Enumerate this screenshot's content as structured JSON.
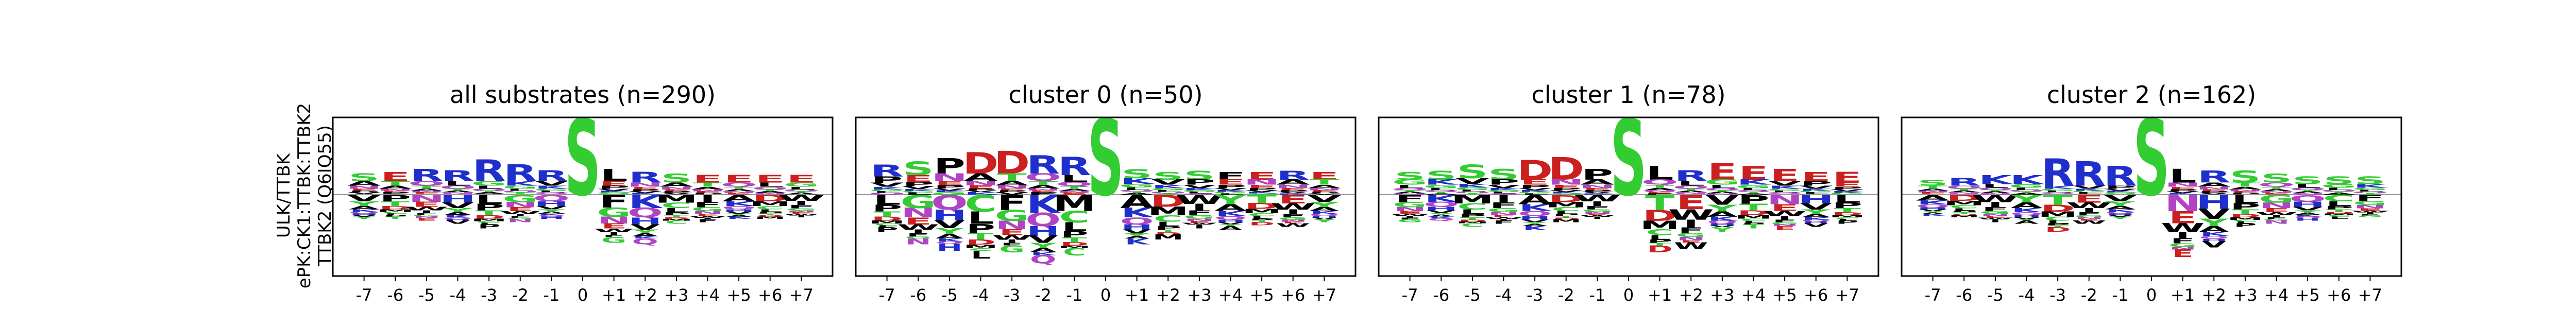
{
  "figure": {
    "row_label_lines": [
      "ULK/TTBK",
      "ePK:CK1:TTBK:TTBK2",
      "TTBK2 (Q6IQ55)"
    ]
  },
  "colors": {
    "S": "#33cc33",
    "T": "#33cc33",
    "G": "#33cc33",
    "Y": "#33cc33",
    "C": "#33cc33",
    "R": "#1f2fcc",
    "K": "#1f2fcc",
    "H": "#1f2fcc",
    "D": "#cc1f1f",
    "E": "#cc1f1f",
    "N": "#b044c4",
    "Q": "#b044c4",
    "A": "#000000",
    "V": "#000000",
    "L": "#000000",
    "I": "#000000",
    "P": "#000000",
    "F": "#000000",
    "W": "#000000",
    "M": "#000000",
    "baseline": "#999999"
  },
  "chart_data": [
    {
      "type": "sequence-logo",
      "title": "all substrates (n=290)",
      "positions": [
        "-7",
        "-6",
        "-5",
        "-4",
        "-3",
        "-2",
        "-1",
        "0",
        "+1",
        "+2",
        "+3",
        "+4",
        "+5",
        "+6",
        "+7"
      ],
      "central_residue": "S",
      "central_height": 1.0,
      "top_letters": [
        "S",
        "E",
        "R",
        "R",
        "R",
        "R",
        "R",
        "S",
        "L",
        "R",
        "S",
        "E",
        "E",
        "E",
        "E"
      ],
      "top_height": [
        0.1,
        0.12,
        0.16,
        0.14,
        0.28,
        0.22,
        0.14,
        1.0,
        0.16,
        0.14,
        0.12,
        0.1,
        0.1,
        0.1,
        0.1
      ],
      "stack_above": [
        0.28,
        0.3,
        0.34,
        0.32,
        0.46,
        0.4,
        0.32,
        1.0,
        0.34,
        0.3,
        0.28,
        0.26,
        0.26,
        0.26,
        0.26
      ],
      "stack_below": [
        0.3,
        0.3,
        0.32,
        0.36,
        0.42,
        0.34,
        0.3,
        0.0,
        0.6,
        0.62,
        0.36,
        0.34,
        0.3,
        0.3,
        0.28
      ]
    },
    {
      "type": "sequence-logo",
      "title": "cluster 0 (n=50)",
      "positions": [
        "-7",
        "-6",
        "-5",
        "-4",
        "-3",
        "-2",
        "-1",
        "0",
        "+1",
        "+2",
        "+3",
        "+4",
        "+5",
        "+6",
        "+7"
      ],
      "central_residue": "S",
      "central_height": 1.0,
      "top_letters": [
        "R",
        "S",
        "P",
        "D",
        "D",
        "R",
        "R",
        "S",
        "S",
        "S",
        "S",
        "F",
        "E",
        "R",
        "E"
      ],
      "top_height": [
        0.16,
        0.18,
        0.2,
        0.28,
        0.3,
        0.24,
        0.24,
        1.0,
        0.12,
        0.1,
        0.12,
        0.1,
        0.1,
        0.12,
        0.1
      ],
      "stack_above": [
        0.4,
        0.44,
        0.48,
        0.56,
        0.58,
        0.52,
        0.5,
        1.0,
        0.34,
        0.3,
        0.32,
        0.3,
        0.3,
        0.32,
        0.3
      ],
      "stack_below": [
        0.46,
        0.62,
        0.7,
        0.8,
        0.72,
        0.86,
        0.76,
        0.0,
        0.62,
        0.56,
        0.42,
        0.44,
        0.38,
        0.4,
        0.34
      ]
    },
    {
      "type": "sequence-logo",
      "title": "cluster 1 (n=78)",
      "positions": [
        "-7",
        "-6",
        "-5",
        "-4",
        "-3",
        "-2",
        "-1",
        "0",
        "+1",
        "+2",
        "+3",
        "+4",
        "+5",
        "+6",
        "+7"
      ],
      "central_residue": "S",
      "central_height": 1.0,
      "top_letters": [
        "S",
        "S",
        "S",
        "S",
        "D",
        "D",
        "P",
        "S",
        "L",
        "R",
        "E",
        "E",
        "E",
        "E",
        "E"
      ],
      "top_height": [
        0.1,
        0.12,
        0.18,
        0.14,
        0.26,
        0.3,
        0.14,
        1.0,
        0.18,
        0.14,
        0.22,
        0.18,
        0.16,
        0.12,
        0.14
      ],
      "stack_above": [
        0.3,
        0.32,
        0.4,
        0.34,
        0.46,
        0.5,
        0.34,
        1.0,
        0.38,
        0.32,
        0.42,
        0.38,
        0.34,
        0.3,
        0.3
      ],
      "stack_below": [
        0.34,
        0.32,
        0.4,
        0.36,
        0.44,
        0.34,
        0.3,
        0.0,
        0.72,
        0.68,
        0.46,
        0.42,
        0.44,
        0.4,
        0.36
      ]
    },
    {
      "type": "sequence-logo",
      "title": "cluster 2 (n=162)",
      "positions": [
        "-7",
        "-6",
        "-5",
        "-4",
        "-3",
        "-2",
        "-1",
        "0",
        "+1",
        "+2",
        "+3",
        "+4",
        "+5",
        "+6",
        "+7"
      ],
      "central_residue": "S",
      "central_height": 1.0,
      "top_letters": [
        "S",
        "R",
        "K",
        "K",
        "R",
        "R",
        "R",
        "S",
        "L",
        "R",
        "S",
        "S",
        "S",
        "S",
        "S"
      ],
      "top_height": [
        0.08,
        0.1,
        0.12,
        0.12,
        0.36,
        0.32,
        0.26,
        1.0,
        0.18,
        0.16,
        0.16,
        0.12,
        0.1,
        0.1,
        0.1
      ],
      "stack_above": [
        0.2,
        0.22,
        0.26,
        0.26,
        0.48,
        0.44,
        0.38,
        1.0,
        0.34,
        0.32,
        0.32,
        0.28,
        0.24,
        0.24,
        0.24
      ],
      "stack_below": [
        0.26,
        0.28,
        0.34,
        0.36,
        0.46,
        0.36,
        0.3,
        0.0,
        0.78,
        0.66,
        0.4,
        0.36,
        0.32,
        0.3,
        0.28
      ]
    }
  ]
}
